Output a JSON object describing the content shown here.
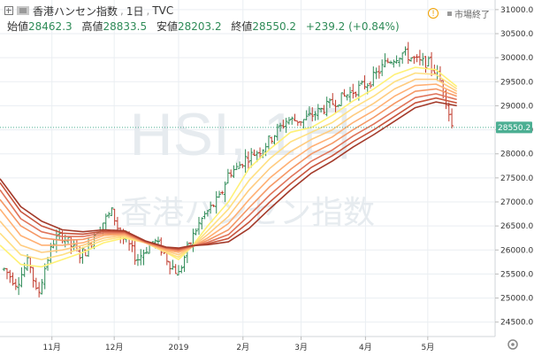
{
  "header": {
    "symbol_title": "香港ハンセン指数",
    "interval": "1日",
    "source": "TVC",
    "ohlc": {
      "open_label": "始値",
      "open": "28462.3",
      "high_label": "高値",
      "high": "28833.5",
      "low_label": "安値",
      "low": "28203.2",
      "close_label": "終値",
      "close": "28550.2",
      "change": "+239.2 (+0.84%)"
    },
    "status_text": "市場終了",
    "warning_icon": "!"
  },
  "watermark": {
    "main": "HSI, 1日",
    "sub": "香港ハンセン指数"
  },
  "colors": {
    "up": "#2e8b57",
    "down": "#c0392b",
    "ribbon": [
      "#fff176",
      "#ffe082",
      "#ffcc80",
      "#ffb074",
      "#f59866",
      "#e0745a",
      "#c8553d",
      "#a33a2a"
    ],
    "last_price_bg": "#4caf93",
    "grid": "#eaeef2"
  },
  "chart_data": {
    "type": "line",
    "title": "",
    "xlabel": "",
    "ylabel": "",
    "ylim": [
      24200,
      31200
    ],
    "grid": true,
    "y_ticks": [
      "31000.0",
      "30500.0",
      "30000.0",
      "29500.0",
      "29000.0",
      "28500.0",
      "28000.0",
      "27500.0",
      "27000.0",
      "26500.0",
      "26000.0",
      "25500.0",
      "25000.0",
      "24500.0"
    ],
    "y_tick_values": [
      31000,
      30500,
      30000,
      29500,
      29000,
      28500,
      28000,
      27500,
      27000,
      26500,
      26000,
      25500,
      25000,
      24500
    ],
    "x_ticks": [
      {
        "label": "11月",
        "day": 45
      },
      {
        "label": "12月",
        "day": 75
      },
      {
        "label": "2019",
        "day": 106
      },
      {
        "label": "2月",
        "day": 137
      },
      {
        "label": "3月",
        "day": 165
      },
      {
        "label": "4月",
        "day": 196
      },
      {
        "label": "5月",
        "day": 226
      }
    ],
    "x_domain": [
      20,
      258
    ],
    "last_price": 28550.2,
    "last_price_label": "28550.2",
    "price_bar_style": "ohlc",
    "price_points": [
      [
        22,
        25600
      ],
      [
        28,
        25300
      ],
      [
        34,
        25800
      ],
      [
        38,
        25000
      ],
      [
        42,
        25700
      ],
      [
        46,
        26200
      ],
      [
        50,
        26300
      ],
      [
        54,
        26100
      ],
      [
        58,
        25900
      ],
      [
        62,
        26000
      ],
      [
        66,
        26400
      ],
      [
        70,
        26600
      ],
      [
        74,
        26800
      ],
      [
        78,
        26300
      ],
      [
        82,
        26100
      ],
      [
        86,
        25800
      ],
      [
        90,
        26000
      ],
      [
        94,
        26200
      ],
      [
        98,
        26000
      ],
      [
        102,
        25700
      ],
      [
        106,
        25500
      ],
      [
        110,
        26000
      ],
      [
        114,
        26400
      ],
      [
        118,
        26700
      ],
      [
        122,
        26900
      ],
      [
        126,
        27100
      ],
      [
        130,
        27600
      ],
      [
        134,
        27700
      ],
      [
        138,
        27900
      ],
      [
        142,
        28000
      ],
      [
        146,
        28100
      ],
      [
        150,
        28300
      ],
      [
        154,
        28500
      ],
      [
        158,
        28700
      ],
      [
        162,
        28700
      ],
      [
        166,
        28700
      ],
      [
        170,
        28800
      ],
      [
        174,
        28900
      ],
      [
        178,
        29000
      ],
      [
        182,
        29100
      ],
      [
        186,
        29200
      ],
      [
        190,
        29300
      ],
      [
        194,
        29400
      ],
      [
        198,
        29500
      ],
      [
        202,
        29700
      ],
      [
        206,
        29900
      ],
      [
        210,
        30000
      ],
      [
        214,
        30100
      ],
      [
        218,
        30000
      ],
      [
        222,
        29900
      ],
      [
        226,
        29900
      ],
      [
        230,
        29700
      ],
      [
        234,
        29300
      ],
      [
        238,
        28500
      ]
    ],
    "series": [
      {
        "values": [
          [
            20,
            26100
          ],
          [
            30,
            25700
          ],
          [
            40,
            25650
          ],
          [
            50,
            25800
          ],
          [
            60,
            25950
          ],
          [
            70,
            26150
          ],
          [
            80,
            26250
          ],
          [
            90,
            26150
          ],
          [
            100,
            25950
          ],
          [
            106,
            25800
          ],
          [
            112,
            26050
          ],
          [
            120,
            26500
          ],
          [
            130,
            27000
          ],
          [
            140,
            27700
          ],
          [
            150,
            28100
          ],
          [
            160,
            28450
          ],
          [
            170,
            28550
          ],
          [
            180,
            28800
          ],
          [
            190,
            29100
          ],
          [
            200,
            29350
          ],
          [
            210,
            29650
          ],
          [
            220,
            29800
          ],
          [
            230,
            29750
          ],
          [
            240,
            29400
          ]
        ]
      },
      {
        "values": [
          [
            20,
            26350
          ],
          [
            30,
            25900
          ],
          [
            40,
            25800
          ],
          [
            50,
            25900
          ],
          [
            60,
            26050
          ],
          [
            70,
            26200
          ],
          [
            80,
            26280
          ],
          [
            90,
            26150
          ],
          [
            100,
            25950
          ],
          [
            106,
            25850
          ],
          [
            112,
            26050
          ],
          [
            120,
            26400
          ],
          [
            130,
            26850
          ],
          [
            140,
            27450
          ],
          [
            150,
            27900
          ],
          [
            160,
            28250
          ],
          [
            170,
            28450
          ],
          [
            180,
            28650
          ],
          [
            190,
            28950
          ],
          [
            200,
            29200
          ],
          [
            210,
            29500
          ],
          [
            220,
            29680
          ],
          [
            230,
            29650
          ],
          [
            240,
            29350
          ]
        ]
      },
      {
        "values": [
          [
            20,
            26600
          ],
          [
            30,
            26100
          ],
          [
            40,
            25950
          ],
          [
            50,
            26000
          ],
          [
            60,
            26100
          ],
          [
            70,
            26250
          ],
          [
            80,
            26300
          ],
          [
            90,
            26150
          ],
          [
            100,
            25980
          ],
          [
            106,
            25900
          ],
          [
            112,
            26050
          ],
          [
            120,
            26320
          ],
          [
            130,
            26700
          ],
          [
            140,
            27250
          ],
          [
            150,
            27700
          ],
          [
            160,
            28050
          ],
          [
            170,
            28300
          ],
          [
            180,
            28500
          ],
          [
            190,
            28800
          ],
          [
            200,
            29050
          ],
          [
            210,
            29350
          ],
          [
            220,
            29550
          ],
          [
            230,
            29550
          ],
          [
            240,
            29300
          ]
        ]
      },
      {
        "values": [
          [
            20,
            26850
          ],
          [
            30,
            26300
          ],
          [
            40,
            26100
          ],
          [
            50,
            26100
          ],
          [
            60,
            26150
          ],
          [
            70,
            26300
          ],
          [
            80,
            26320
          ],
          [
            90,
            26150
          ],
          [
            100,
            26000
          ],
          [
            106,
            25950
          ],
          [
            112,
            26050
          ],
          [
            120,
            26250
          ],
          [
            130,
            26550
          ],
          [
            140,
            27050
          ],
          [
            150,
            27500
          ],
          [
            160,
            27850
          ],
          [
            170,
            28150
          ],
          [
            180,
            28350
          ],
          [
            190,
            28650
          ],
          [
            200,
            28900
          ],
          [
            210,
            29200
          ],
          [
            220,
            29420
          ],
          [
            230,
            29450
          ],
          [
            240,
            29250
          ]
        ]
      },
      {
        "values": [
          [
            20,
            27050
          ],
          [
            30,
            26500
          ],
          [
            40,
            26250
          ],
          [
            50,
            26200
          ],
          [
            60,
            26220
          ],
          [
            70,
            26330
          ],
          [
            80,
            26340
          ],
          [
            90,
            26160
          ],
          [
            100,
            26020
          ],
          [
            106,
            25980
          ],
          [
            112,
            26060
          ],
          [
            120,
            26200
          ],
          [
            130,
            26420
          ],
          [
            140,
            26880
          ],
          [
            150,
            27320
          ],
          [
            160,
            27680
          ],
          [
            170,
            28000
          ],
          [
            180,
            28220
          ],
          [
            190,
            28500
          ],
          [
            200,
            28760
          ],
          [
            210,
            29050
          ],
          [
            220,
            29300
          ],
          [
            230,
            29350
          ],
          [
            240,
            29200
          ]
        ]
      },
      {
        "values": [
          [
            20,
            27250
          ],
          [
            30,
            26650
          ],
          [
            40,
            26380
          ],
          [
            50,
            26280
          ],
          [
            60,
            26280
          ],
          [
            70,
            26360
          ],
          [
            80,
            26360
          ],
          [
            90,
            26170
          ],
          [
            100,
            26040
          ],
          [
            106,
            26000
          ],
          [
            112,
            26070
          ],
          [
            120,
            26160
          ],
          [
            130,
            26320
          ],
          [
            140,
            26720
          ],
          [
            150,
            27150
          ],
          [
            160,
            27520
          ],
          [
            170,
            27850
          ],
          [
            180,
            28080
          ],
          [
            190,
            28370
          ],
          [
            200,
            28620
          ],
          [
            210,
            28900
          ],
          [
            220,
            29170
          ],
          [
            230,
            29250
          ],
          [
            240,
            29130
          ]
        ]
      },
      {
        "values": [
          [
            20,
            27400
          ],
          [
            30,
            26800
          ],
          [
            40,
            26500
          ],
          [
            50,
            26350
          ],
          [
            60,
            26330
          ],
          [
            70,
            26390
          ],
          [
            80,
            26380
          ],
          [
            90,
            26180
          ],
          [
            100,
            26050
          ],
          [
            106,
            26020
          ],
          [
            112,
            26080
          ],
          [
            120,
            26130
          ],
          [
            130,
            26240
          ],
          [
            140,
            26580
          ],
          [
            150,
            27000
          ],
          [
            160,
            27380
          ],
          [
            170,
            27720
          ],
          [
            180,
            27960
          ],
          [
            190,
            28250
          ],
          [
            200,
            28500
          ],
          [
            210,
            28780
          ],
          [
            220,
            29060
          ],
          [
            230,
            29160
          ],
          [
            240,
            29060
          ]
        ]
      },
      {
        "values": [
          [
            20,
            27480
          ],
          [
            30,
            26900
          ],
          [
            40,
            26600
          ],
          [
            50,
            26420
          ],
          [
            60,
            26380
          ],
          [
            70,
            26420
          ],
          [
            80,
            26400
          ],
          [
            90,
            26190
          ],
          [
            100,
            26060
          ],
          [
            106,
            26040
          ],
          [
            112,
            26090
          ],
          [
            120,
            26110
          ],
          [
            130,
            26170
          ],
          [
            140,
            26450
          ],
          [
            150,
            26860
          ],
          [
            160,
            27250
          ],
          [
            170,
            27600
          ],
          [
            180,
            27850
          ],
          [
            190,
            28140
          ],
          [
            200,
            28400
          ],
          [
            210,
            28680
          ],
          [
            220,
            28960
          ],
          [
            230,
            29080
          ],
          [
            240,
            29000
          ]
        ]
      }
    ]
  }
}
